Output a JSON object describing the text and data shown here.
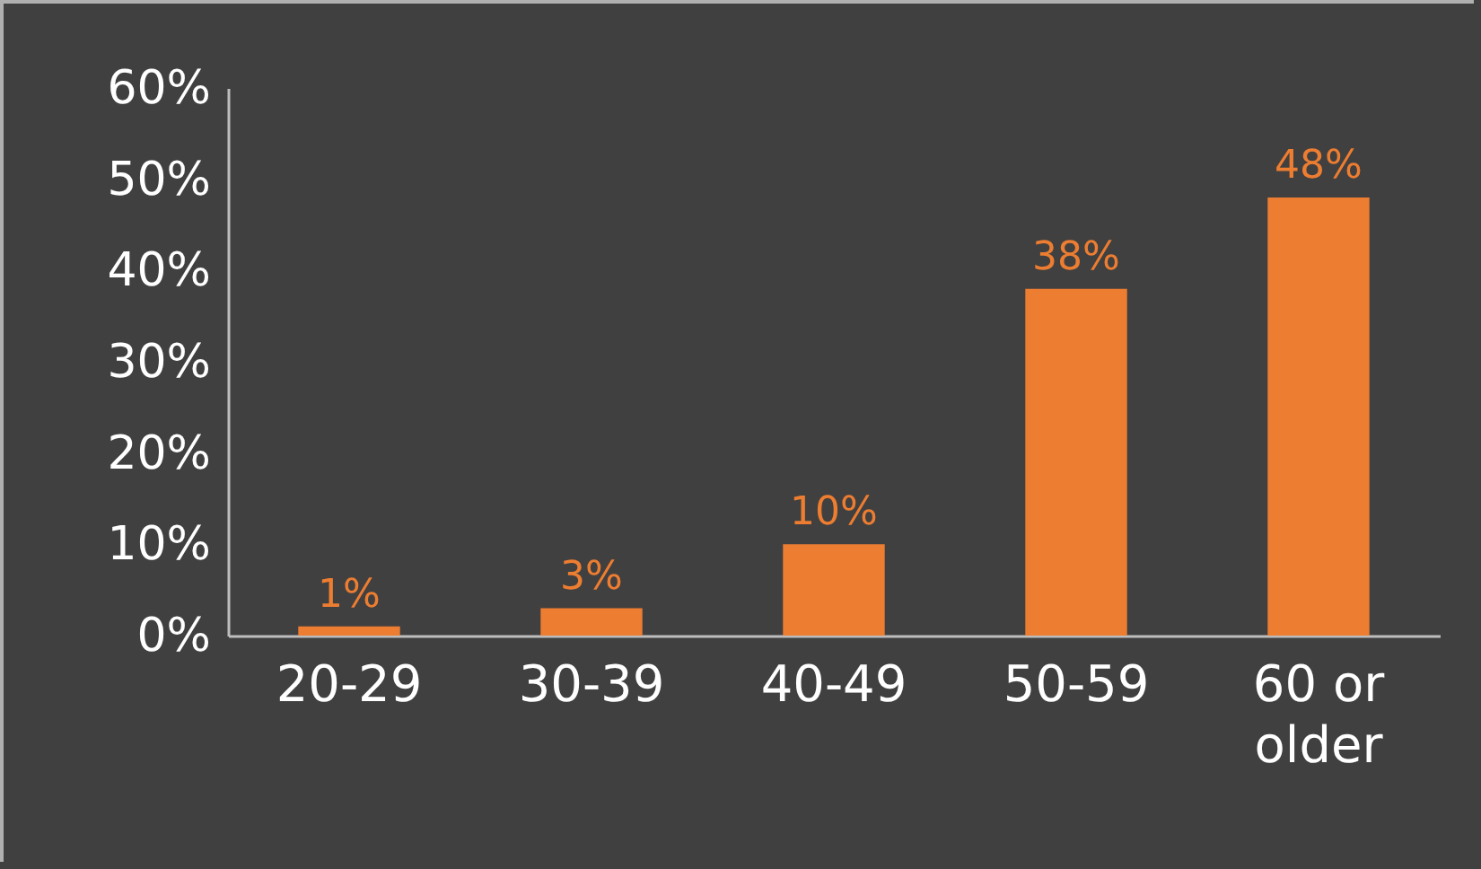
{
  "chart_data": {
    "type": "bar",
    "categories": [
      "20-29",
      "30-39",
      "40-49",
      "50-59",
      "60 or older"
    ],
    "values": [
      1,
      3,
      10,
      38,
      48
    ],
    "color": "#ed7d31",
    "value_labels": [
      "1%",
      "3%",
      "10%",
      "38%",
      "48%"
    ],
    "ylim": [
      0,
      60
    ],
    "yticks": [
      {
        "value": 0,
        "label": "0%"
      },
      {
        "value": 10,
        "label": "10%"
      },
      {
        "value": 20,
        "label": "20%"
      },
      {
        "value": 30,
        "label": "30%"
      },
      {
        "value": 40,
        "label": "40%"
      },
      {
        "value": 50,
        "label": "50%"
      },
      {
        "value": 60,
        "label": "60%"
      }
    ],
    "grid": false
  }
}
